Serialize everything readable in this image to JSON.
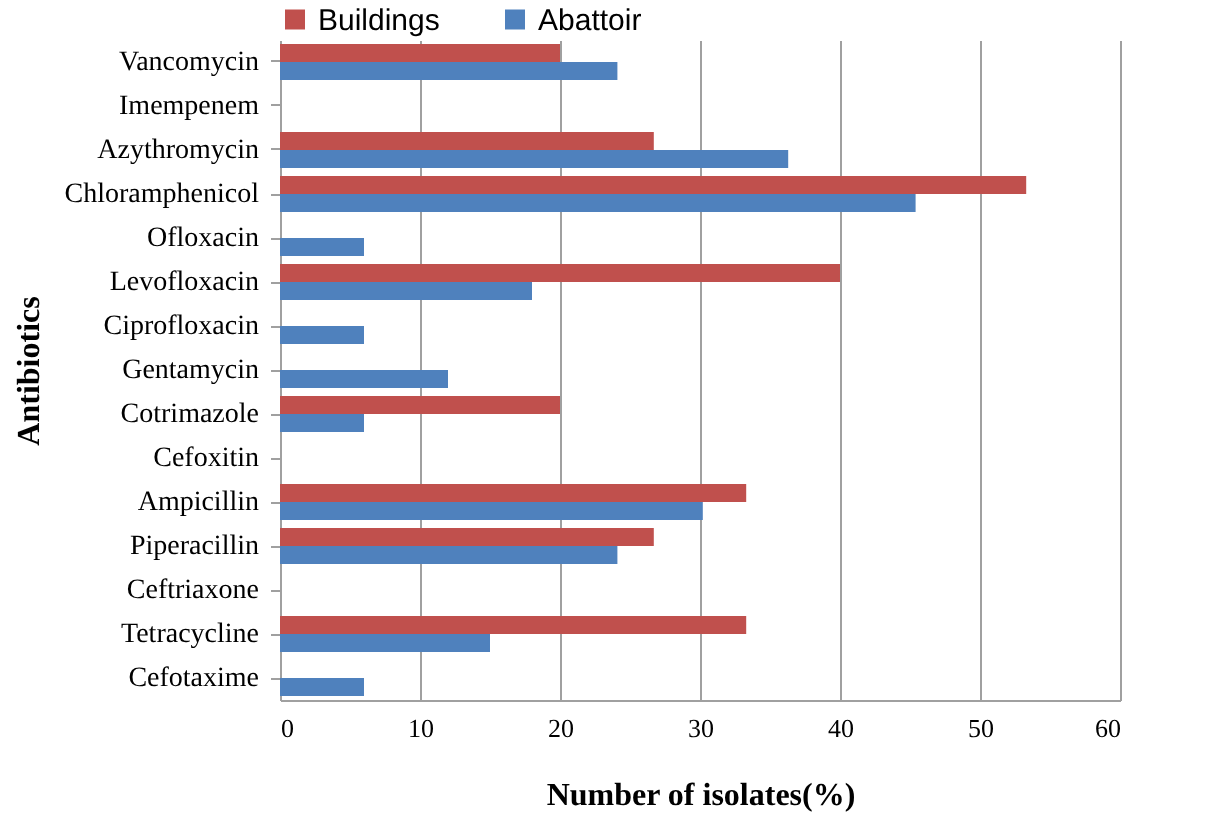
{
  "chart_data": {
    "type": "bar",
    "orientation": "horizontal",
    "xlabel": "Number of isolates(%)",
    "ylabel": "Antibiotics",
    "categories": [
      "Vancomycin",
      "Imempenem",
      "Azythromycin",
      "Chloramphenicol",
      "Ofloxacin",
      "Levofloxacin",
      "Ciprofloxacin",
      "Gentamycin",
      "Cotrimazole",
      "Cefoxitin",
      "Ampicillin",
      "Piperacillin",
      "Ceftriaxone",
      "Tetracycline",
      "Cefotaxime"
    ],
    "series": [
      {
        "name": "Buildings",
        "color": "#c0504d",
        "values": [
          20,
          null,
          26.7,
          53.3,
          null,
          40,
          null,
          null,
          20,
          null,
          33.3,
          26.7,
          null,
          33.3,
          null
        ]
      },
      {
        "name": "Abattoir",
        "color": "#4f81bd",
        "values": [
          24.1,
          null,
          36.3,
          45.4,
          6,
          18,
          6,
          12,
          6,
          null,
          30.2,
          24.1,
          null,
          15,
          6
        ]
      }
    ],
    "xlim": [
      0,
      60
    ],
    "xticks": [
      0,
      10,
      20,
      30,
      40,
      50,
      60
    ],
    "grid": "x",
    "legend": "top"
  }
}
